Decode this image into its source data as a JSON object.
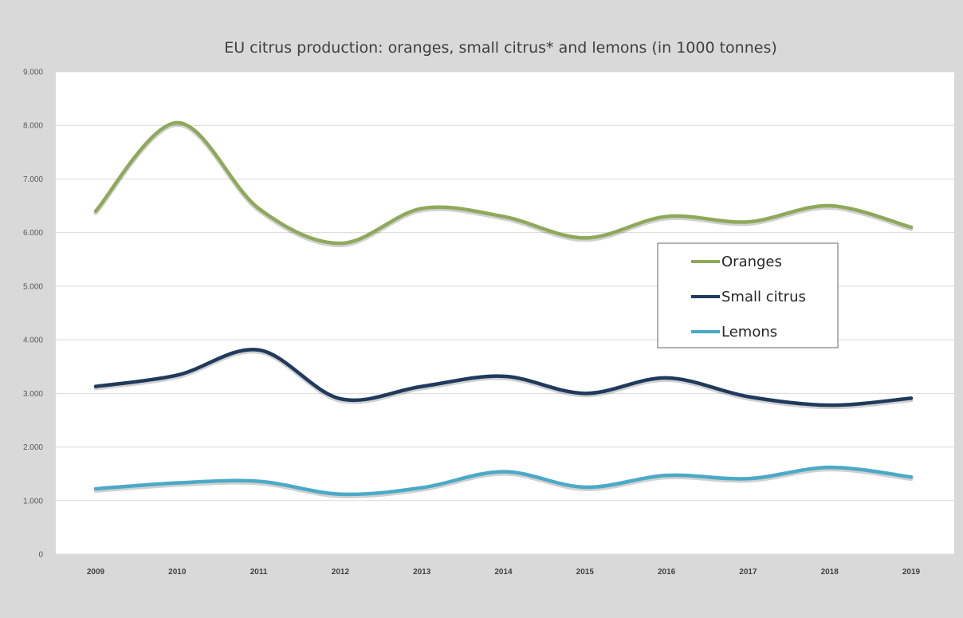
{
  "chart_data": {
    "type": "line",
    "title": "EU citrus production: oranges, small citrus* and lemons  (in 1000 tonnes)",
    "xlabel": "",
    "ylabel": "",
    "x": [
      "2009",
      "2010",
      "2011",
      "2012",
      "2013",
      "2014",
      "2015",
      "2016",
      "2017",
      "2018",
      "2019"
    ],
    "ylim": [
      0,
      9000
    ],
    "yticks": [
      "0",
      "1.000",
      "2.000",
      "3.000",
      "4.000",
      "5.000",
      "6.000",
      "7.000",
      "8.000",
      "9.000"
    ],
    "grid": true,
    "legend_position": "right",
    "series": [
      {
        "name": "Oranges",
        "color": "#8fa95a",
        "values": [
          6400,
          8050,
          6450,
          5800,
          6450,
          6300,
          5900,
          6300,
          6200,
          6500,
          6100
        ]
      },
      {
        "name": "Small citrus",
        "color": "#1f3a5c",
        "values": [
          3130,
          3340,
          3810,
          2900,
          3130,
          3320,
          3000,
          3290,
          2940,
          2780,
          2910
        ]
      },
      {
        "name": "Lemons",
        "color": "#4aaac7",
        "values": [
          1220,
          1330,
          1360,
          1120,
          1240,
          1540,
          1250,
          1470,
          1410,
          1620,
          1440
        ]
      }
    ]
  }
}
